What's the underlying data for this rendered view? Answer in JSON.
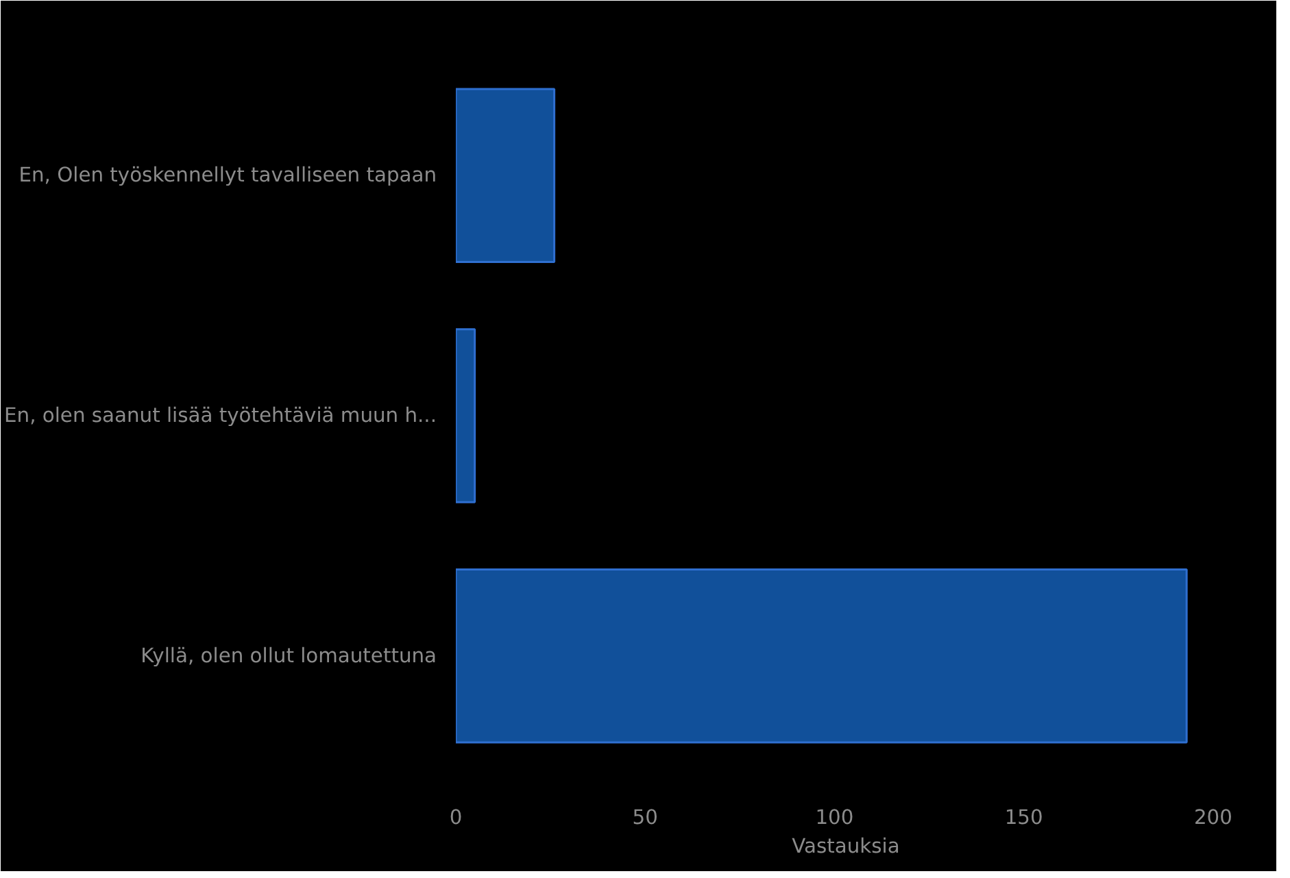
{
  "chart_data": {
    "type": "bar",
    "orientation": "horizontal",
    "categories": [
      "En, Olen työskennellyt tavalliseen tapaan",
      "En, olen saanut lisää työtehtäviä muun h...",
      "Kyllä, olen ollut lomautettuna"
    ],
    "values": [
      26,
      5,
      193
    ],
    "color": "#11509a",
    "xlabel": "Vastauksia",
    "xlim": [
      0,
      206
    ],
    "xticks": [
      0,
      50,
      100,
      150,
      200
    ],
    "grid": false
  }
}
